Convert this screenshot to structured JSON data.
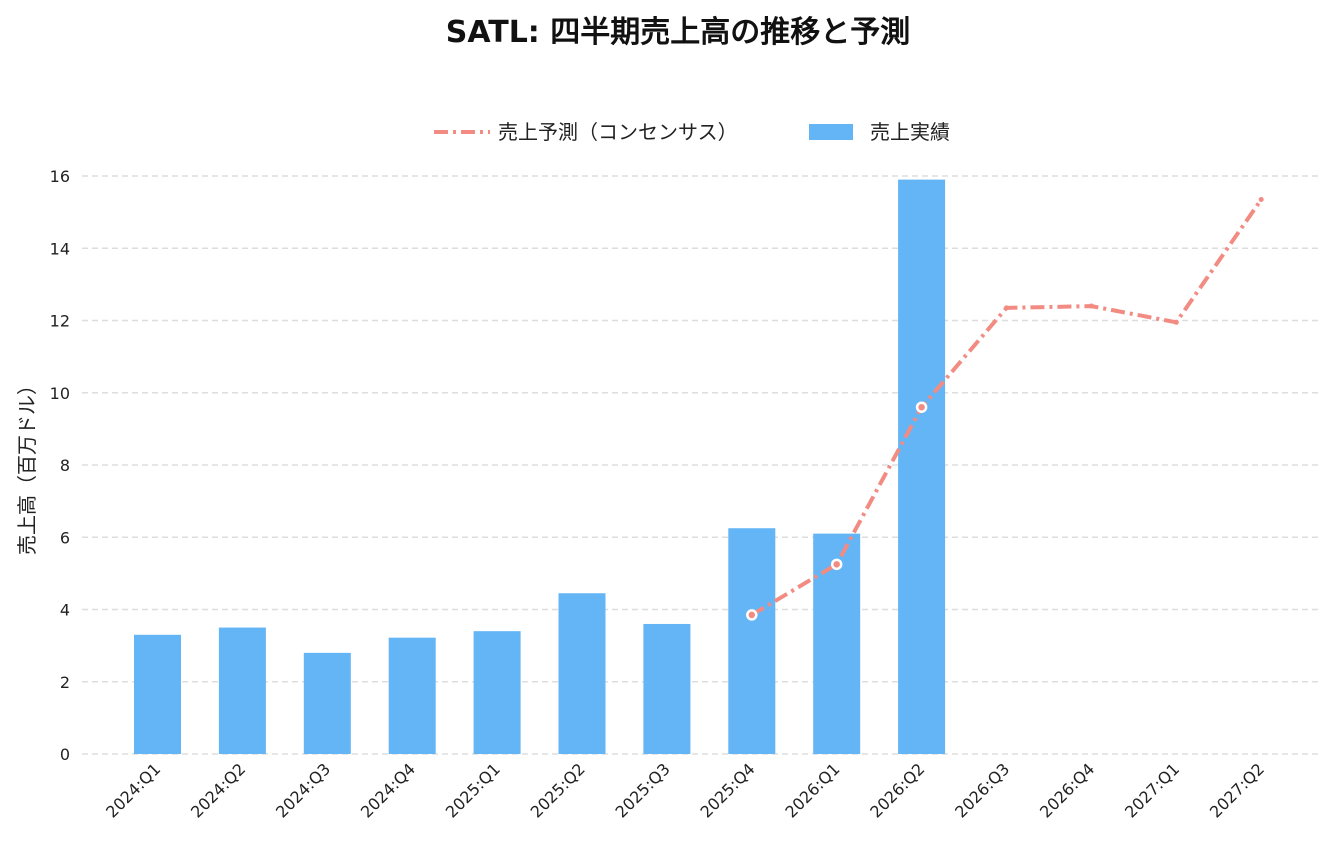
{
  "chart_data": {
    "type": "bar",
    "title": "SATL: 四半期売上高の推移と予測",
    "xlabel": "",
    "ylabel": "売上高（百万ドル）",
    "ylim": [
      0,
      16
    ],
    "yticks": [
      0,
      2,
      4,
      6,
      8,
      10,
      12,
      14,
      16
    ],
    "grid": true,
    "legend_position": "top-center",
    "categories": [
      "2024:Q1",
      "2024:Q2",
      "2024:Q3",
      "2024:Q4",
      "2025:Q1",
      "2025:Q2",
      "2025:Q3",
      "2025:Q4",
      "2026:Q1",
      "2026:Q2",
      "2026:Q3",
      "2026:Q4",
      "2027:Q1",
      "2027:Q2"
    ],
    "series": [
      {
        "name": "売上予測（コンセンサス）",
        "type": "line",
        "style": "dash-dot",
        "color": "#f28b82",
        "values": [
          null,
          null,
          null,
          null,
          null,
          null,
          null,
          3.85,
          5.25,
          9.6,
          12.35,
          12.4,
          11.95,
          15.35
        ]
      },
      {
        "name": "売上実績",
        "type": "bar",
        "color": "#64b5f6",
        "values": [
          3.3,
          3.5,
          2.8,
          3.22,
          3.4,
          4.45,
          3.6,
          6.25,
          6.1,
          15.9,
          null,
          null,
          null,
          null
        ]
      }
    ]
  }
}
